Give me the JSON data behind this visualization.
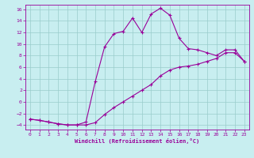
{
  "xlabel": "Windchill (Refroidissement éolien,°C)",
  "background_color": "#c8eef0",
  "grid_color": "#99cccc",
  "line_color": "#990099",
  "xlim": [
    -0.5,
    23.5
  ],
  "ylim": [
    -4.8,
    16.8
  ],
  "xticks": [
    0,
    1,
    2,
    3,
    4,
    5,
    6,
    7,
    8,
    9,
    10,
    11,
    12,
    13,
    14,
    15,
    16,
    17,
    18,
    19,
    20,
    21,
    22,
    23
  ],
  "yticks": [
    -4,
    -2,
    0,
    2,
    4,
    6,
    8,
    10,
    12,
    14,
    16
  ],
  "curve1_x": [
    0,
    1,
    2,
    3,
    4,
    5,
    6,
    7,
    8,
    9,
    10,
    11,
    12,
    13,
    14,
    15,
    16,
    17,
    18,
    19,
    20,
    21,
    22,
    23
  ],
  "curve1_y": [
    -3.0,
    -3.2,
    -3.5,
    -3.8,
    -4.0,
    -4.0,
    -4.0,
    -3.6,
    -2.2,
    -1.0,
    0.0,
    1.0,
    2.0,
    3.0,
    4.5,
    5.5,
    6.0,
    6.2,
    6.5,
    7.0,
    7.5,
    8.5,
    8.5,
    7.0
  ],
  "curve2_x": [
    0,
    1,
    2,
    3,
    4,
    5,
    6,
    7,
    8,
    9,
    10,
    11,
    12,
    13,
    14,
    15,
    16,
    17,
    18,
    19,
    20,
    21,
    22,
    23
  ],
  "curve2_y": [
    -3.0,
    -3.2,
    -3.5,
    -3.8,
    -4.0,
    -4.0,
    -3.5,
    3.5,
    9.5,
    11.8,
    12.2,
    14.5,
    12.0,
    15.2,
    16.2,
    15.0,
    11.0,
    9.2,
    9.0,
    8.5,
    8.0,
    9.0,
    9.0,
    7.0
  ]
}
